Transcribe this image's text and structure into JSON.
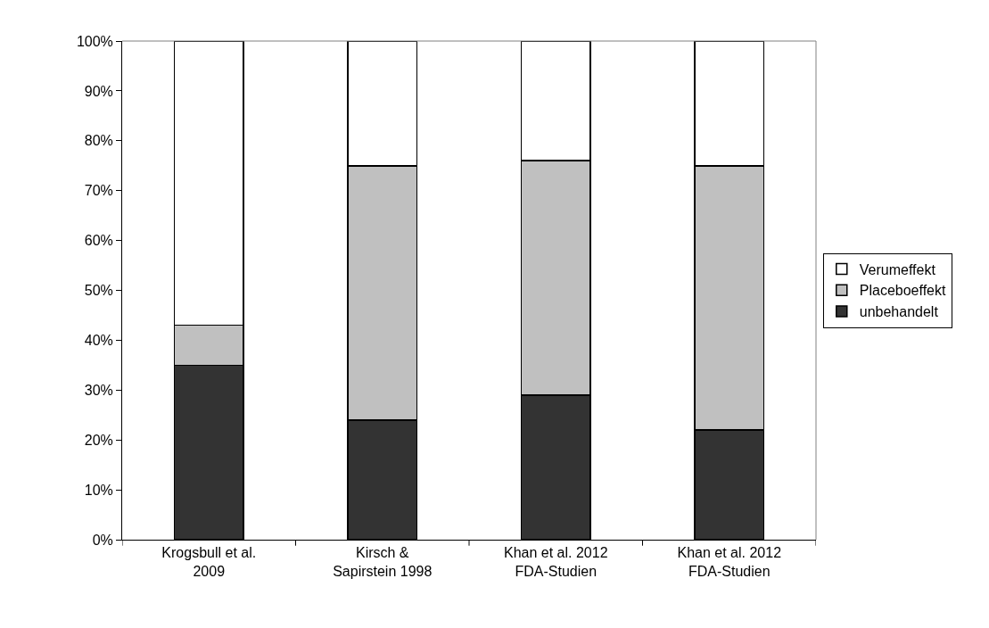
{
  "chart_data": {
    "type": "bar",
    "stacked": true,
    "categories": [
      "Krogsbull et al.\n2009",
      "Kirsch &\nSapirstein 1998",
      "Khan et al. 2012\nFDA-Studien",
      "Khan et al. 2012\nFDA-Studien"
    ],
    "series": [
      {
        "name": "unbehandelt",
        "color": "#333333",
        "values": [
          35,
          24,
          29,
          22
        ]
      },
      {
        "name": "Placeboeffekt",
        "color": "#c0c0c0",
        "values": [
          8,
          51,
          47,
          53
        ]
      },
      {
        "name": "Verumeffekt",
        "color": "#ffffff",
        "values": [
          57,
          25,
          24,
          25
        ]
      }
    ],
    "ylim": [
      0,
      100
    ],
    "yticks": [
      {
        "value": 0,
        "label": "0%"
      },
      {
        "value": 10,
        "label": "10%"
      },
      {
        "value": 20,
        "label": "20%"
      },
      {
        "value": 30,
        "label": "30%"
      },
      {
        "value": 40,
        "label": "40%"
      },
      {
        "value": 50,
        "label": "50%"
      },
      {
        "value": 60,
        "label": "60%"
      },
      {
        "value": 70,
        "label": "70%"
      },
      {
        "value": 80,
        "label": "80%"
      },
      {
        "value": 90,
        "label": "90%"
      },
      {
        "value": 100,
        "label": "100%"
      }
    ],
    "grid": false,
    "legend": "right"
  }
}
